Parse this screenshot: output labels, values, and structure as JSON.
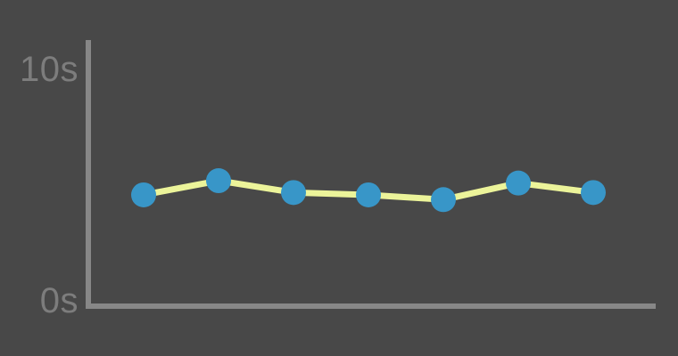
{
  "chart_data": {
    "type": "line",
    "title": "",
    "unit": "s",
    "values": [
      4.7,
      5.3,
      4.8,
      4.7,
      4.5,
      5.2,
      4.8
    ],
    "x_labels": [],
    "y_tick_labels": [
      "10s",
      "0s"
    ],
    "ylim": [
      0,
      10
    ],
    "grid": false,
    "legend": null,
    "colors": {
      "background": "#484848",
      "axis": "#878787",
      "tick_label": "#7d7d7d",
      "line": "#ecf49a",
      "marker": "#3896c8"
    }
  }
}
